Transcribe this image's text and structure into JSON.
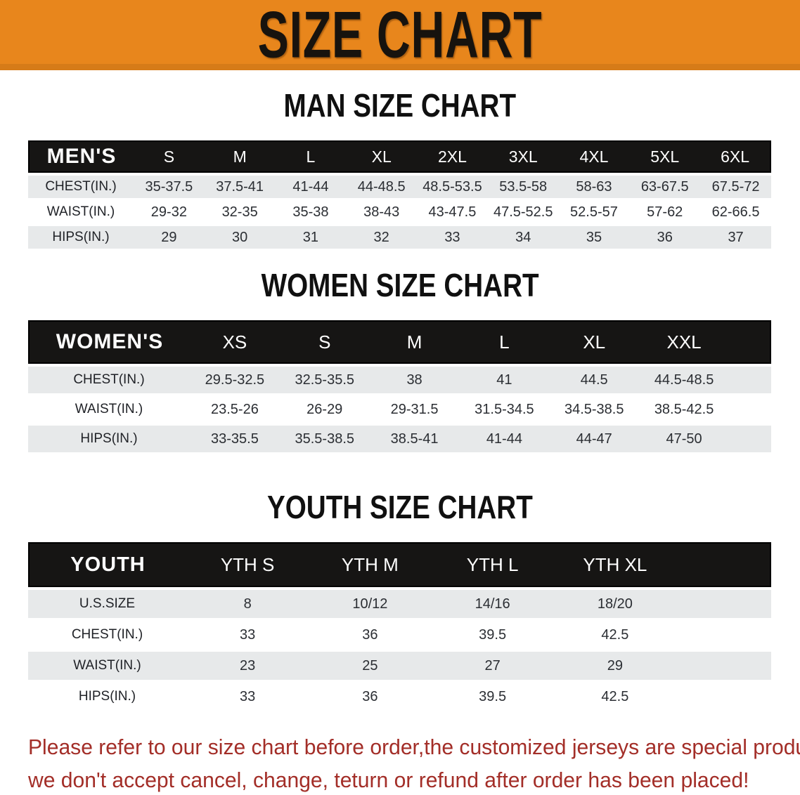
{
  "banner": {
    "title": "SIZE CHART",
    "background_color": "#e8861c",
    "text_color": "#17130e"
  },
  "sections": [
    {
      "heading": "MAN SIZE CHART",
      "table": {
        "header": [
          "MEN'S",
          "S",
          "M",
          "L",
          "XL",
          "2XL",
          "3XL",
          "4XL",
          "5XL",
          "6XL"
        ],
        "rows": [
          {
            "label": "CHEST(IN.)",
            "values": [
              "35-37.5",
              "37.5-41",
              "41-44",
              "44-48.5",
              "48.5-53.5",
              "53.5-58",
              "58-63",
              "63-67.5",
              "67.5-72"
            ]
          },
          {
            "label": "WAIST(IN.)",
            "values": [
              "29-32",
              "32-35",
              "35-38",
              "38-43",
              "43-47.5",
              "47.5-52.5",
              "52.5-57",
              "57-62",
              "62-66.5"
            ]
          },
          {
            "label": "HIPS(IN.)",
            "values": [
              "29",
              "30",
              "31",
              "32",
              "33",
              "34",
              "35",
              "36",
              "37"
            ]
          }
        ]
      }
    },
    {
      "heading": "WOMEN SIZE CHART",
      "table": {
        "header": [
          "WOMEN'S",
          "XS",
          "S",
          "M",
          "L",
          "XL",
          "XXL"
        ],
        "rows": [
          {
            "label": "CHEST(IN.)",
            "values": [
              "29.5-32.5",
              "32.5-35.5",
              "38",
              "41",
              "44.5",
              "44.5-48.5"
            ]
          },
          {
            "label": "WAIST(IN.)",
            "values": [
              "23.5-26",
              "26-29",
              "29-31.5",
              "31.5-34.5",
              "34.5-38.5",
              "38.5-42.5"
            ]
          },
          {
            "label": "HIPS(IN.)",
            "values": [
              "33-35.5",
              "35.5-38.5",
              "38.5-41",
              "41-44",
              "44-47",
              "47-50"
            ]
          }
        ]
      }
    },
    {
      "heading": "YOUTH SIZE CHART",
      "table": {
        "header": [
          "YOUTH",
          "YTH S",
          "YTH M",
          "YTH L",
          "YTH XL"
        ],
        "rows": [
          {
            "label": "U.S.SIZE",
            "values": [
              "8",
              "10/12",
              "14/16",
              "18/20"
            ]
          },
          {
            "label": "CHEST(IN.)",
            "values": [
              "33",
              "36",
              "39.5",
              "42.5"
            ]
          },
          {
            "label": "WAIST(IN.)",
            "values": [
              "23",
              "25",
              "27",
              "29"
            ]
          },
          {
            "label": "HIPS(IN.)",
            "values": [
              "33",
              "36",
              "39.5",
              "42.5"
            ]
          }
        ]
      }
    }
  ],
  "disclaimer": {
    "line1": "Please refer to our size chart before order,the customized jerseys are special products,",
    "line2": "we don't accept cancel, change, teturn or refund after order has been placed!",
    "text_color": "#a32e28"
  },
  "colors": {
    "banner_orange": "#e8861c",
    "table_header_black": "#161514",
    "striped_row_gray": "#e7e9ea",
    "disclaimer_red": "#a32e28"
  }
}
